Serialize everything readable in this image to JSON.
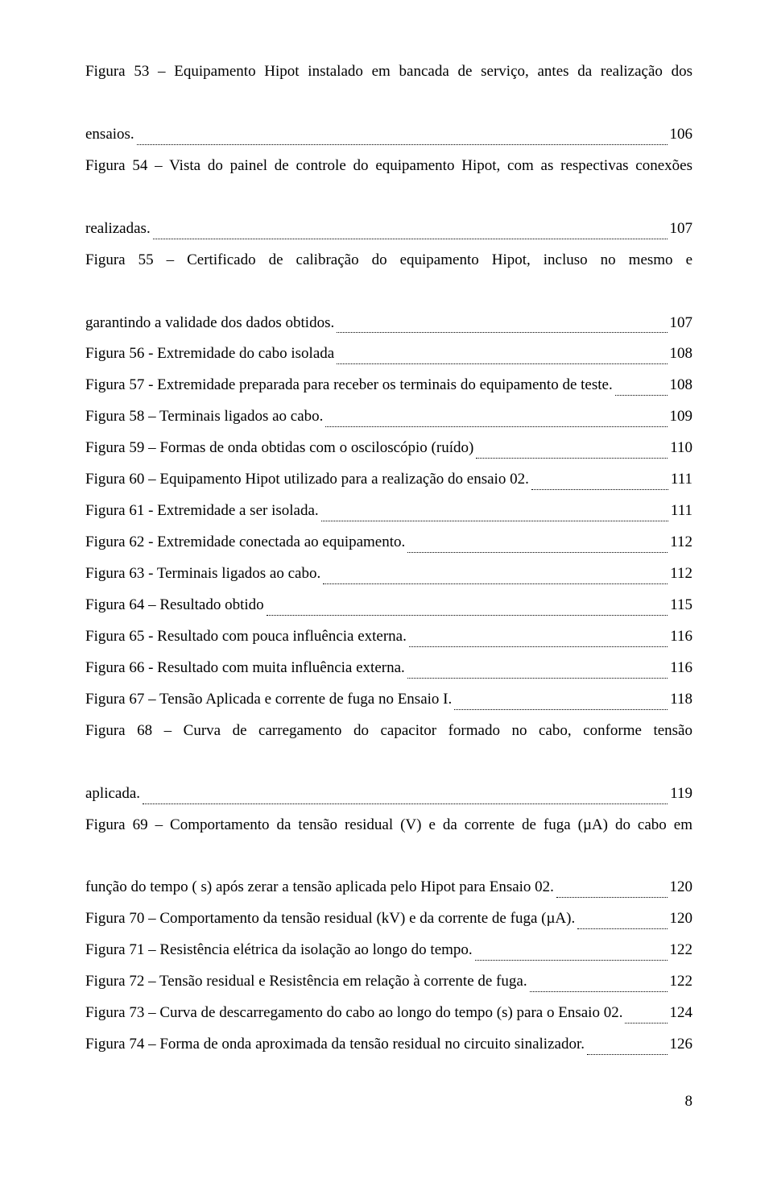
{
  "text_color": "#000000",
  "background_color": "#ffffff",
  "font_family": "Times New Roman",
  "body_font_size_pt": 12,
  "line_spacing": 2.0,
  "page_number": "8",
  "entries": [
    {
      "lines": [
        "Figura 53 – Equipamento Hipot instalado em bancada de serviço, antes da realização dos",
        "ensaios."
      ],
      "page": "106"
    },
    {
      "lines": [
        "Figura 54 – Vista do painel de controle do equipamento Hipot, com as respectivas conexões",
        "realizadas."
      ],
      "page": "107"
    },
    {
      "lines": [
        "Figura 55 – Certificado de calibração do equipamento Hipot, incluso no mesmo e",
        "garantindo a validade dos dados obtidos."
      ],
      "page": "107"
    },
    {
      "lines": [
        "Figura 56 - Extremidade do cabo isolada"
      ],
      "page": "108"
    },
    {
      "lines": [
        "Figura 57 - Extremidade preparada para receber os terminais do equipamento de teste."
      ],
      "page": "108"
    },
    {
      "lines": [
        "Figura 58 – Terminais ligados ao cabo."
      ],
      "page": "109"
    },
    {
      "lines": [
        "Figura 59 – Formas de onda obtidas com o osciloscópio (ruído)"
      ],
      "page": "110"
    },
    {
      "lines": [
        "Figura 60 – Equipamento Hipot utilizado para a realização do ensaio 02."
      ],
      "page": "111"
    },
    {
      "lines": [
        "Figura 61 - Extremidade a ser isolada."
      ],
      "page": "111"
    },
    {
      "lines": [
        "Figura 62 - Extremidade conectada ao equipamento."
      ],
      "page": "112"
    },
    {
      "lines": [
        "Figura 63 - Terminais ligados ao cabo."
      ],
      "page": "112"
    },
    {
      "lines": [
        "Figura 64 – Resultado obtido"
      ],
      "page": "115"
    },
    {
      "lines": [
        "Figura 65 - Resultado com pouca influência externa."
      ],
      "page": "116"
    },
    {
      "lines": [
        "Figura 66 - Resultado com muita influência externa."
      ],
      "page": "116"
    },
    {
      "lines": [
        "Figura 67 – Tensão Aplicada e corrente de fuga no Ensaio I."
      ],
      "page": "118"
    },
    {
      "lines": [
        "Figura 68 – Curva de carregamento do capacitor formado no cabo, conforme tensão",
        "aplicada."
      ],
      "page": "119"
    },
    {
      "lines": [
        "Figura 69 – Comportamento da tensão residual (V) e da corrente de fuga (µA)  do cabo em",
        "função do tempo ( s) após zerar a tensão aplicada pelo Hipot para Ensaio 02."
      ],
      "page": "120"
    },
    {
      "lines": [
        "Figura 70 – Comportamento da tensão residual (kV) e da corrente de fuga (µA)."
      ],
      "page": "120"
    },
    {
      "lines": [
        "Figura 71 – Resistência elétrica da isolação ao longo do tempo."
      ],
      "page": "122"
    },
    {
      "lines": [
        "Figura 72 – Tensão residual e Resistência em relação à corrente de fuga."
      ],
      "page": "122"
    },
    {
      "lines": [
        "Figura 73 – Curva de descarregamento do cabo ao longo do tempo (s) para o Ensaio 02."
      ],
      "page": "124"
    },
    {
      "lines": [
        "Figura 74 – Forma de onda aproximada da tensão residual no circuito sinalizador."
      ],
      "page": "126"
    }
  ]
}
